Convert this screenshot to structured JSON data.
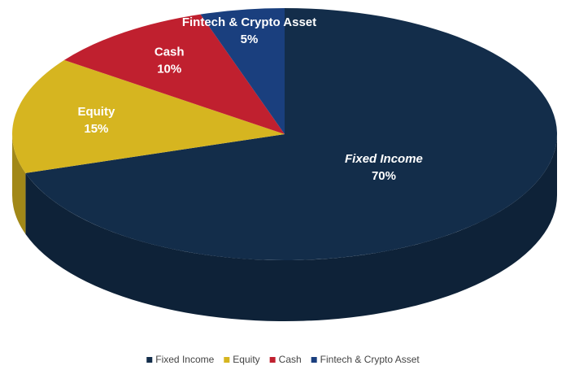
{
  "chart_data": {
    "type": "pie",
    "categories": [
      "Fixed Income",
      "Equity",
      "Cash",
      "Fintech & Crypto Asset"
    ],
    "values": [
      70,
      15,
      10,
      5
    ],
    "value_labels": [
      "70%",
      "15%",
      "10%",
      "5%"
    ],
    "colors": [
      "#132d4a",
      "#d6b520",
      "#c0202f",
      "#1a3f7e"
    ],
    "legend": "bottom"
  }
}
